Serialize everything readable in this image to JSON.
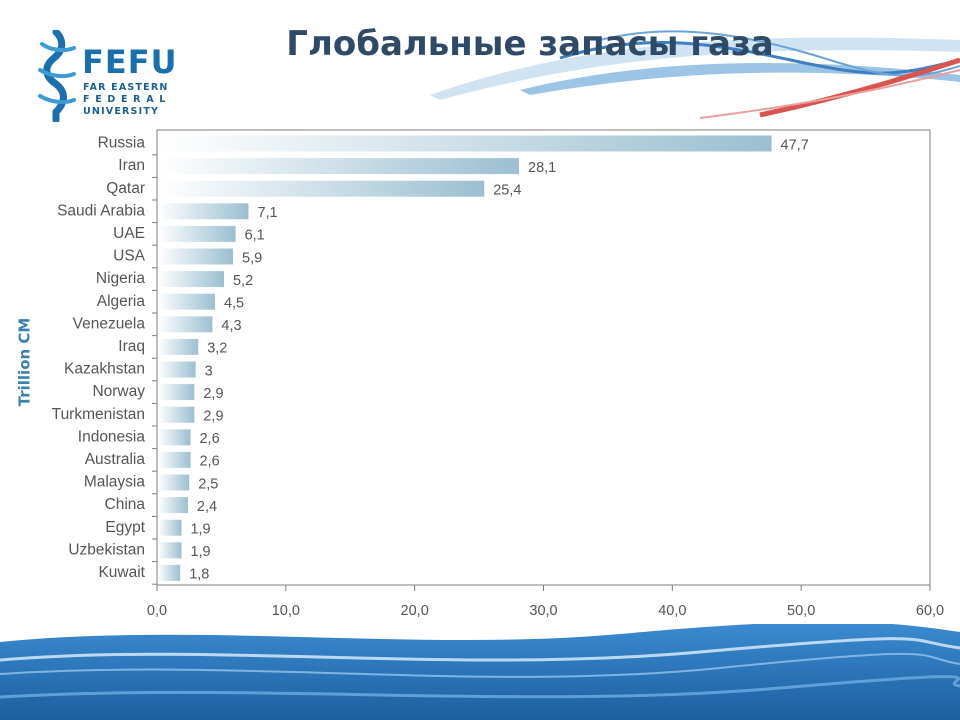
{
  "slide": {
    "title": "Глобальные запасы газа"
  },
  "logo": {
    "name": "FEFU",
    "line1": "FAR EASTERN",
    "line2": "F E D E R A L",
    "line3": "UNIVERSITY",
    "color": "#1a6fae"
  },
  "chart_data": {
    "type": "bar",
    "orientation": "horizontal",
    "categories": [
      "Russia",
      "Iran",
      "Qatar",
      "Saudi Arabia",
      "UAE",
      "USA",
      "Nigeria",
      "Algeria",
      "Venezuela",
      "Iraq",
      "Kazakhstan",
      "Norway",
      "Turkmenistan",
      "Indonesia",
      "Australia",
      "Malaysia",
      "China",
      "Egypt",
      "Uzbekistan",
      "Kuwait"
    ],
    "values": [
      47.7,
      28.1,
      25.4,
      7.1,
      6.1,
      5.9,
      5.2,
      4.5,
      4.3,
      3.2,
      3,
      2.9,
      2.9,
      2.6,
      2.6,
      2.5,
      2.4,
      1.9,
      1.9,
      1.8
    ],
    "value_labels": [
      "47,7",
      "28,1",
      "25,4",
      "7,1",
      "6,1",
      "5,9",
      "5,2",
      "4,5",
      "4,3",
      "3,2",
      "3",
      "2,9",
      "2,9",
      "2,6",
      "2,6",
      "2,5",
      "2,4",
      "1,9",
      "1,9",
      "1,8"
    ],
    "xlim": [
      0,
      60
    ],
    "x_ticks": [
      0,
      10,
      20,
      30,
      40,
      50,
      60
    ],
    "x_tick_labels": [
      "0,0",
      "10,0",
      "20,0",
      "30,0",
      "40,0",
      "50,0",
      "60,0"
    ],
    "ylabel": "Trillion CM",
    "grid": false,
    "bar_color_start": "#ffffff",
    "bar_color_end": "#9bbfd1",
    "axis_color": "#7f7f7f"
  }
}
